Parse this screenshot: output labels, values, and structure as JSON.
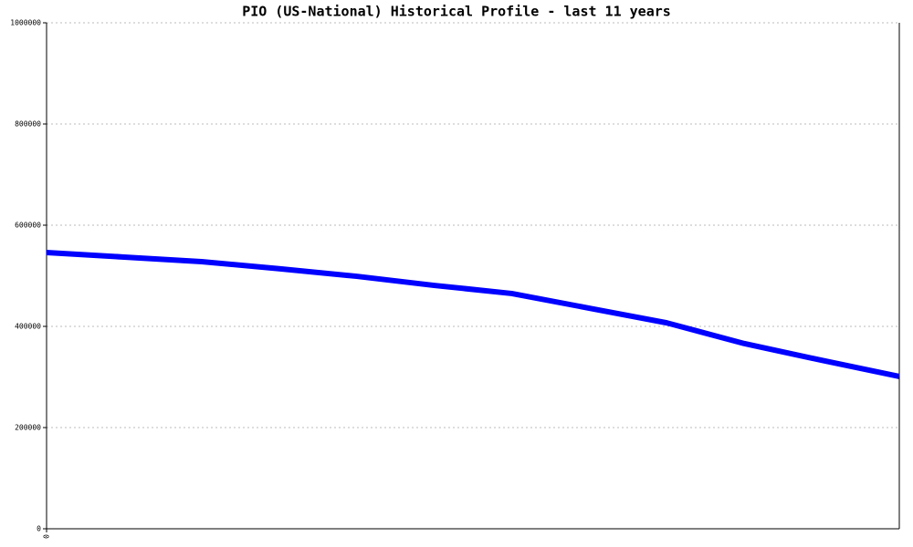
{
  "chart_data": {
    "type": "line",
    "title": "PIO (US-National) Historical Profile - last 11 years",
    "x": [
      0,
      1,
      2,
      3,
      4,
      5,
      6,
      7,
      8,
      9,
      10,
      11
    ],
    "series": [
      {
        "color": "#0000ff",
        "values": [
          546000,
          537000,
          528000,
          514000,
          499000,
          481000,
          465000,
          436000,
          407000,
          366000,
          333000,
          301000
        ]
      }
    ],
    "xlim": [
      0,
      11
    ],
    "xticks": [
      0
    ],
    "ylim": [
      0,
      1000000
    ],
    "yticks": [
      0,
      200000,
      400000,
      600000,
      800000,
      1000000
    ],
    "grid": true
  }
}
